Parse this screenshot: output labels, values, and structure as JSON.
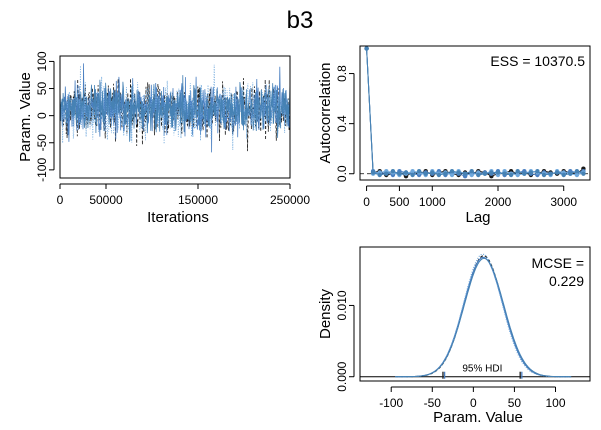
{
  "title": "b3",
  "chart_data": [
    {
      "panel": "trace",
      "type": "line",
      "xlabel": "Iterations",
      "ylabel": "Param. Value",
      "xlim": [
        0,
        250000
      ],
      "ylim": [
        -115,
        110
      ],
      "xticks": [
        0,
        50000,
        150000,
        250000
      ],
      "yticks": [
        -100,
        -50,
        0,
        50,
        100
      ],
      "series": [
        {
          "color": "#1a1a1a",
          "style": "dashed",
          "center": 12,
          "sd": 24
        },
        {
          "color": "#4a7fc1",
          "style": "solid",
          "center": 12,
          "sd": 24
        },
        {
          "color": "#6fa8dc",
          "style": "dotted",
          "center": 12,
          "sd": 24
        },
        {
          "color": "#4682b4",
          "style": "solid",
          "center": 12,
          "sd": 20
        }
      ]
    },
    {
      "panel": "autocorrelation",
      "type": "line",
      "xlabel": "Lag",
      "ylabel": "Autocorrelation",
      "annotation": "ESS = 10370.5",
      "xlim": [
        -100,
        3400
      ],
      "ylim": [
        -0.05,
        1.02
      ],
      "xticks": [
        0,
        500,
        1000,
        2000,
        3000
      ],
      "yticks": [
        0.0,
        0.4,
        0.8
      ],
      "lags": [
        0,
        100,
        200,
        300,
        400,
        500,
        600,
        700,
        800,
        900,
        1000,
        1100,
        1200,
        1300,
        1400,
        1500,
        1600,
        1700,
        1800,
        1900,
        2000,
        2100,
        2200,
        2300,
        2400,
        2500,
        2600,
        2700,
        2800,
        2900,
        3000,
        3100,
        3200,
        3300
      ],
      "series": [
        {
          "color": "#1a1a1a",
          "values": [
            1.0,
            0.01,
            0.02,
            -0.01,
            0.0,
            0.01,
            -0.02,
            0.01,
            0.0,
            0.02,
            -0.01,
            0.01,
            0.02,
            0.0,
            -0.01,
            0.01,
            0.0,
            0.02,
            0.01,
            -0.02,
            0.0,
            0.01,
            0.02,
            0.0,
            0.01,
            -0.01,
            0.0,
            0.02,
            0.01,
            0.0,
            0.02,
            0.01,
            0.0,
            0.04
          ]
        },
        {
          "color": "#4a7fc1",
          "values": [
            1.0,
            0.02,
            0.0,
            0.01,
            -0.01,
            0.02,
            0.01,
            0.0,
            -0.01,
            0.01,
            0.0,
            0.02,
            -0.01,
            0.01,
            0.0,
            -0.02,
            0.01,
            0.0,
            0.01,
            0.0,
            0.02,
            -0.01,
            0.0,
            0.01,
            0.02,
            0.0,
            -0.01,
            0.01,
            0.0,
            0.01,
            0.0,
            0.02,
            0.01,
            0.02
          ]
        },
        {
          "color": "#6fa8dc",
          "values": [
            1.0,
            0.0,
            0.01,
            0.02,
            0.01,
            -0.01,
            0.0,
            0.02,
            0.01,
            -0.01,
            0.02,
            0.0,
            0.01,
            -0.01,
            0.02,
            0.0,
            -0.01,
            0.01,
            0.0,
            0.02,
            -0.01,
            0.02,
            0.0,
            -0.01,
            0.0,
            0.02,
            0.01,
            0.0,
            -0.01,
            0.02,
            0.01,
            0.0,
            -0.01,
            0.01
          ]
        },
        {
          "color": "#4682b4",
          "values": [
            1.0,
            0.01,
            -0.01,
            0.0,
            0.02,
            0.0,
            0.01,
            -0.01,
            0.02,
            0.0,
            0.01,
            -0.01,
            0.0,
            0.02,
            0.01,
            0.0,
            0.02,
            -0.01,
            0.0,
            0.01,
            0.01,
            0.0,
            -0.01,
            0.02,
            0.0,
            0.01,
            0.02,
            -0.01,
            0.0,
            0.01,
            -0.01,
            0.0,
            0.02,
            0.0
          ]
        }
      ]
    },
    {
      "panel": "density",
      "type": "line",
      "xlabel": "Param. Value",
      "ylabel": "Density",
      "annotation_line1": "MCSE =",
      "annotation_line2": "0.229",
      "hdi_label": "95% HDI",
      "hdi": [
        -35,
        57
      ],
      "xlim": [
        -138,
        142
      ],
      "ylim": [
        -0.0006,
        0.0182
      ],
      "xticks": [
        -100,
        -50,
        0,
        50,
        100
      ],
      "yticks": [
        0.0,
        0.01
      ],
      "ytick_labels": [
        "0.000",
        "0.010"
      ],
      "series": [
        {
          "color": "#1a1a1a",
          "style": "dashed",
          "mean": 12.5,
          "sd": 23.5
        },
        {
          "color": "#4a7fc1",
          "style": "solid",
          "mean": 12.0,
          "sd": 23.8
        },
        {
          "color": "#6fa8dc",
          "style": "dotted",
          "mean": 11.5,
          "sd": 23.2
        },
        {
          "color": "#4682b4",
          "style": "solid",
          "mean": 13.0,
          "sd": 24.0
        }
      ]
    }
  ]
}
